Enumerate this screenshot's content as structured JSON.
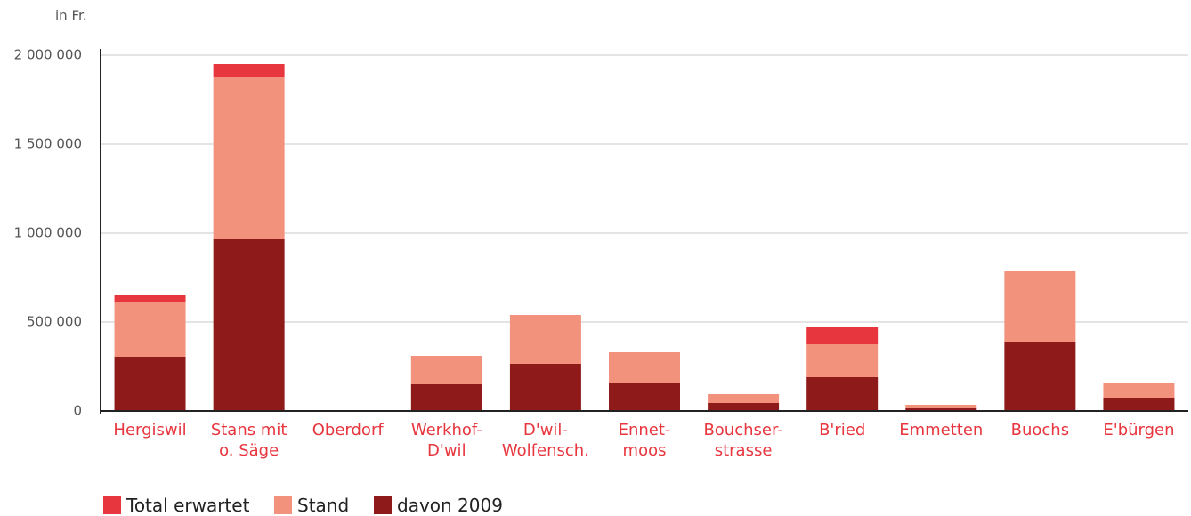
{
  "chart_data": {
    "type": "bar",
    "stacked": true,
    "y_axis_label": "in Fr.",
    "categories": [
      "Hergiswil",
      "Stans mit\no. Säge",
      "Oberdorf",
      "Werkhof-\nD'wil",
      "D'wil-\nWolfensch.",
      "Ennet-\nmoos",
      "Bouchser-\nstrasse",
      "B'ried",
      "Emmetten",
      "Buochs",
      "E'bürgen"
    ],
    "series": [
      {
        "name": "Total erwartet",
        "color": "#e8363f",
        "values": [
          35000,
          70000,
          0,
          0,
          0,
          0,
          0,
          100000,
          0,
          0,
          0
        ]
      },
      {
        "name": "Stand",
        "color": "#f2917c",
        "values": [
          310000,
          915000,
          0,
          160000,
          275000,
          170000,
          50000,
          185000,
          20000,
          395000,
          85000
        ]
      },
      {
        "name": "davon 2009",
        "color": "#8e1a1a",
        "values": [
          305000,
          965000,
          0,
          150000,
          265000,
          160000,
          45000,
          190000,
          15000,
          390000,
          75000
        ]
      }
    ],
    "ylim": [
      0,
      2000000
    ],
    "yticks": [
      0,
      {
        "value": 500000,
        "label": "500 000"
      },
      {
        "value": 1000000,
        "label": "1 000 000"
      },
      {
        "value": 1500000,
        "label": "1 500 000"
      },
      {
        "value": 2000000,
        "label": "2 000 000"
      }
    ],
    "grid": true,
    "legend": "bottom-left"
  }
}
